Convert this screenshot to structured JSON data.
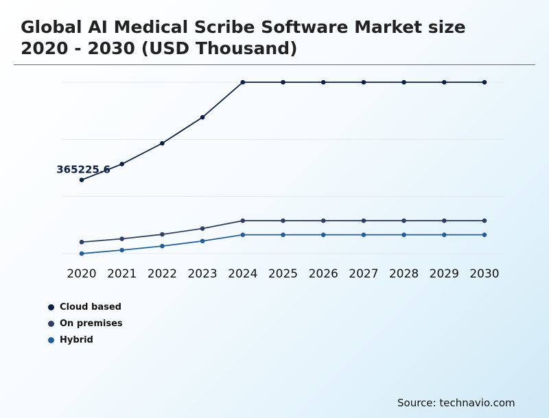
{
  "title_line1": "Global AI Medical Scribe Software Market size",
  "title_line2": "2020 - 2030 (USD Thousand)",
  "source": "Source: technavio.com",
  "chart_data": {
    "type": "line",
    "title": "Global AI Medical Scribe Software Market size 2020 - 2030 (USD Thousand)",
    "xlabel": "",
    "ylabel": "",
    "x": [
      "2020",
      "2021",
      "2022",
      "2023",
      "2024",
      "2025",
      "2026",
      "2027",
      "2028",
      "2029",
      "2030"
    ],
    "series": [
      {
        "name": "Cloud based",
        "color": "#0c1f45",
        "values": [
          365225.6,
          444000,
          547000,
          676000,
          850000,
          850000,
          850000,
          850000,
          850000,
          850000,
          850000
        ]
      },
      {
        "name": "On premises",
        "color": "#2e3e66",
        "values": [
          57000,
          73000,
          95000,
          124000,
          163000,
          163000,
          163000,
          163000,
          163000,
          163000,
          163000
        ]
      },
      {
        "name": "Hybrid",
        "color": "#1f5fa0",
        "values": [
          0,
          17000,
          37000,
          62000,
          93000,
          93000,
          93000,
          93000,
          93000,
          93000,
          93000
        ]
      }
    ],
    "annotations": [
      {
        "series": 0,
        "index": 0,
        "text": "365225.6"
      }
    ],
    "ylim": [
      0,
      850000
    ],
    "grid": true,
    "gridlines": [
      0,
      283333,
      566667,
      850000
    ],
    "legend": "bottom-left"
  }
}
